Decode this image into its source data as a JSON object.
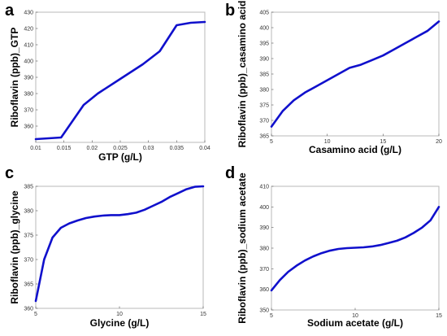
{
  "chart_data": [
    {
      "type": "line",
      "panel_label": "a",
      "xlabel": "GTP (g/L)",
      "ylabel": "Riboflavin (ppb)_GTP",
      "xlim": [
        0.01,
        0.04
      ],
      "ylim": [
        350,
        430
      ],
      "x_ticks": [
        0.01,
        0.015,
        0.02,
        0.025,
        0.03,
        0.035,
        0.04
      ],
      "x_tick_labels": [
        "0.01",
        "0.015",
        "0.02",
        "0.025",
        "0.03",
        "0.035",
        "0.04"
      ],
      "y_ticks": [
        360,
        370,
        380,
        390,
        400,
        410,
        420,
        430
      ],
      "y_tick_labels": [
        "360",
        "370",
        "380",
        "390",
        "400",
        "410",
        "420",
        "430"
      ],
      "grid": false,
      "series": [
        {
          "color": "#1010cc",
          "x": [
            0.01,
            0.0145,
            0.0165,
            0.0185,
            0.021,
            0.025,
            0.029,
            0.032,
            0.035,
            0.0375,
            0.04
          ],
          "y": [
            352,
            353,
            363,
            373,
            380,
            389,
            398,
            406,
            422,
            423.5,
            424
          ]
        }
      ]
    },
    {
      "type": "line",
      "panel_label": "b",
      "xlabel": "Casamino acid (g/L)",
      "ylabel": "Riboflavin (ppb)_casamino acid",
      "xlim": [
        5,
        20
      ],
      "ylim": [
        365,
        405
      ],
      "x_ticks": [
        5,
        10,
        15,
        20
      ],
      "x_tick_labels": [
        "5",
        "10",
        "15",
        "20"
      ],
      "y_ticks": [
        365,
        370,
        375,
        380,
        385,
        390,
        395,
        400,
        405
      ],
      "y_tick_labels": [
        "365",
        "370",
        "375",
        "380",
        "385",
        "390",
        "395",
        "400",
        "405"
      ],
      "grid": false,
      "series": [
        {
          "color": "#1010cc",
          "x": [
            5,
            6,
            7,
            8,
            9,
            10,
            11,
            12,
            13,
            14,
            15,
            16,
            17,
            18,
            19,
            20
          ],
          "y": [
            368,
            373,
            376.5,
            379,
            381,
            383,
            385,
            387,
            388,
            389.5,
            391,
            393,
            395,
            397,
            399,
            402
          ]
        }
      ]
    },
    {
      "type": "line",
      "panel_label": "c",
      "xlabel": "Glycine (g/L)",
      "ylabel": "Riboflavin (ppb)_glycine",
      "xlim": [
        5,
        15
      ],
      "ylim": [
        360,
        385
      ],
      "x_ticks": [
        5,
        10,
        15
      ],
      "x_tick_labels": [
        "5",
        "10",
        "15"
      ],
      "y_ticks": [
        360,
        365,
        370,
        375,
        380,
        385
      ],
      "y_tick_labels": [
        "360",
        "365",
        "370",
        "375",
        "380",
        "385"
      ],
      "grid": false,
      "series": [
        {
          "color": "#1010cc",
          "x": [
            5,
            5.5,
            6,
            6.5,
            7,
            7.5,
            8,
            8.5,
            9,
            9.5,
            10,
            10.5,
            11,
            11.5,
            12,
            12.5,
            13,
            13.5,
            14,
            14.5,
            15
          ],
          "y": [
            361.5,
            370,
            374.5,
            376.5,
            377.4,
            378,
            378.5,
            378.8,
            379,
            379.1,
            379.1,
            379.3,
            379.6,
            380.2,
            381,
            381.8,
            382.8,
            383.6,
            384.4,
            384.9,
            385
          ]
        }
      ]
    },
    {
      "type": "line",
      "panel_label": "d",
      "xlabel": "Sodium acetate (g/L)",
      "ylabel": "Riboflavin (ppb)_sodium acetate",
      "xlim": [
        5,
        15
      ],
      "ylim": [
        350,
        410
      ],
      "x_ticks": [
        5,
        10,
        15
      ],
      "x_tick_labels": [
        "5",
        "10",
        "15"
      ],
      "y_ticks": [
        350,
        360,
        370,
        380,
        390,
        400,
        410
      ],
      "y_tick_labels": [
        "350",
        "360",
        "370",
        "380",
        "390",
        "400",
        "410"
      ],
      "grid": false,
      "series": [
        {
          "color": "#1010cc",
          "x": [
            5,
            5.5,
            6,
            6.5,
            7,
            7.5,
            8,
            8.5,
            9,
            9.5,
            10,
            10.5,
            11,
            11.5,
            12,
            12.5,
            13,
            13.5,
            14,
            14.5,
            15
          ],
          "y": [
            359.5,
            364.5,
            368.5,
            371.5,
            374,
            376,
            377.6,
            378.8,
            379.6,
            380,
            380.2,
            380.4,
            380.8,
            381.5,
            382.5,
            383.6,
            385.2,
            387.4,
            390,
            393.5,
            400
          ]
        }
      ]
    }
  ]
}
